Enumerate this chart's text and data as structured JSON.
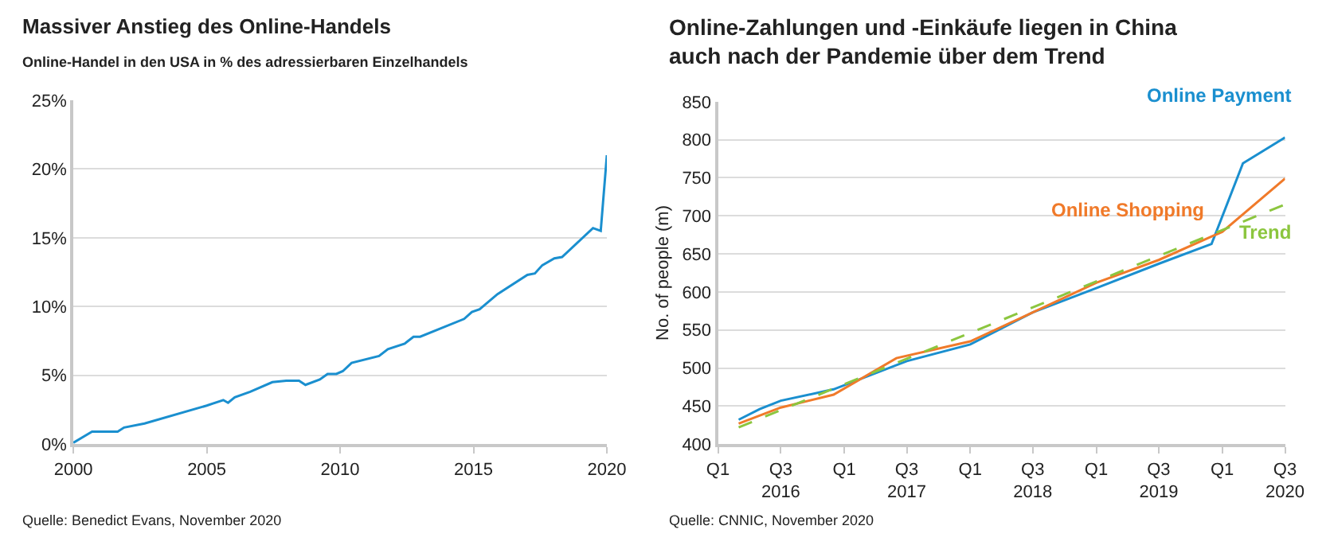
{
  "chart_data": [
    {
      "type": "line",
      "title": "Massiver Anstieg des Online-Handels",
      "subtitle": "Online-Handel in den USA in % des adressierbaren Einzelhandels",
      "series": [
        {
          "color": "#1a8fcf",
          "x": [
            2000.0,
            2000.7,
            2001.66,
            2001.9,
            2002.67,
            2005.0,
            2005.62,
            2005.8,
            2006.05,
            2006.63,
            2007.46,
            2007.98,
            2008.46,
            2008.7,
            2009.24,
            2009.53,
            2009.86,
            2010.1,
            2010.43,
            2011.46,
            2011.79,
            2012.42,
            2012.75,
            2013.0,
            2014.65,
            2014.94,
            2015.23,
            2015.9,
            2017.02,
            2017.3,
            2017.58,
            2018.03,
            2018.32,
            2019.48,
            2019.77,
            2020.0
          ],
          "values": [
            0.1,
            0.9,
            0.9,
            1.2,
            1.5,
            2.8,
            3.2,
            3.0,
            3.4,
            3.8,
            4.5,
            4.6,
            4.6,
            4.3,
            4.7,
            5.1,
            5.1,
            5.3,
            5.9,
            6.4,
            6.9,
            7.3,
            7.8,
            7.8,
            9.1,
            9.6,
            9.8,
            10.9,
            12.3,
            12.4,
            13.0,
            13.5,
            13.6,
            15.7,
            15.5,
            21.0
          ]
        }
      ],
      "xlim": [
        2000,
        2020
      ],
      "xticks": [
        2000,
        2005,
        2010,
        2015,
        2020
      ],
      "ylim": [
        0,
        25
      ],
      "yticks": [
        {
          "value": 0,
          "label": "0%"
        },
        {
          "value": 5,
          "label": "5%"
        },
        {
          "value": 10,
          "label": "10%"
        },
        {
          "value": 15,
          "label": "15%"
        },
        {
          "value": 20,
          "label": "20%"
        },
        {
          "value": 25,
          "label": "25%"
        }
      ],
      "grid": "y",
      "line_style": "solid",
      "annotations": [
        "Quelle: Benedict Evans, November 2020"
      ]
    },
    {
      "type": "line",
      "title": "Online-Zahlungen und -Einkäufe liegen in China\nauch nach der Pandemie über dem Trend",
      "ylabel": "No. of people (m)",
      "series": [
        {
          "name": "Online Payment",
          "color": "#1a8fcf",
          "x": [
            "2016-03",
            "2016-05",
            "2016-07",
            "2016-12",
            "2017-07",
            "2018-01",
            "2018-07",
            "2019-01",
            "2019-07",
            "2019-12",
            "2020-03",
            "2020-07"
          ],
          "values": [
            432,
            446,
            457,
            472,
            509,
            531,
            573,
            605,
            637,
            663,
            769,
            803
          ]
        },
        {
          "name": "Online Shopping",
          "color": "#f07a2a",
          "x": [
            "2016-03",
            "2016-07",
            "2016-12",
            "2017-06",
            "2018-01",
            "2018-07",
            "2019-01",
            "2019-07",
            "2020-01",
            "2020-07"
          ],
          "values": [
            427,
            448,
            465,
            513,
            535,
            573,
            612,
            642,
            679,
            749
          ]
        },
        {
          "name": "Trend",
          "color": "#8cc63f",
          "line_style": "dashed",
          "x": [
            "2016-03",
            "2020-07"
          ],
          "values": [
            422,
            715
          ]
        }
      ],
      "xlim": [
        "2016-01",
        "2020-07"
      ],
      "xticks": [
        {
          "value": "2016-01",
          "label": "Q1"
        },
        {
          "value": "2016-07",
          "label": "Q3\n2016"
        },
        {
          "value": "2017-01",
          "label": "Q1"
        },
        {
          "value": "2017-07",
          "label": "Q3\n2017"
        },
        {
          "value": "2018-01",
          "label": "Q1"
        },
        {
          "value": "2018-07",
          "label": "Q3\n2018"
        },
        {
          "value": "2019-01",
          "label": "Q1"
        },
        {
          "value": "2019-07",
          "label": "Q3\n2019"
        },
        {
          "value": "2020-01",
          "label": "Q1"
        },
        {
          "value": "2020-07",
          "label": "Q3\n2020"
        }
      ],
      "ylim": [
        400,
        850
      ],
      "yticks": [
        400,
        450,
        500,
        550,
        600,
        650,
        700,
        750,
        800,
        850
      ],
      "grid": "y",
      "line_style": "solid",
      "annotations": [
        "Quelle: CNNIC, November 2020"
      ]
    }
  ]
}
